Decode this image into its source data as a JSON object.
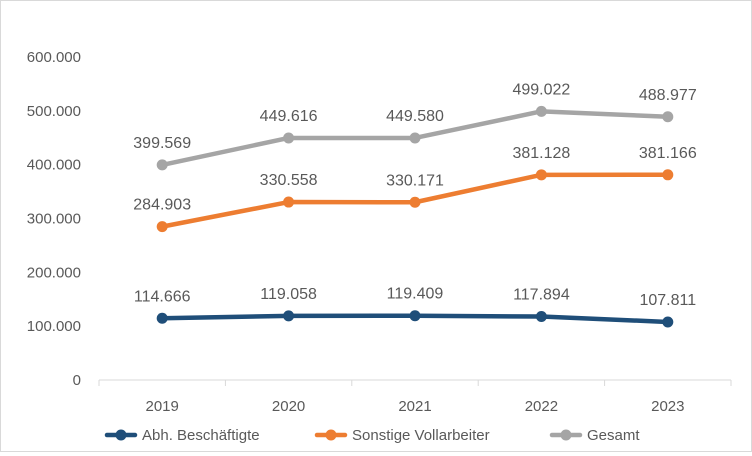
{
  "chart_data": {
    "type": "line",
    "title": "",
    "xlabel": "",
    "ylabel": "",
    "categories": [
      "2019",
      "2020",
      "2021",
      "2022",
      "2023"
    ],
    "ylim": [
      0,
      600000
    ],
    "yticks": [
      0,
      100000,
      200000,
      300000,
      400000,
      500000,
      600000
    ],
    "ytick_labels": [
      "0",
      "100.000",
      "200.000",
      "300.000",
      "400.000",
      "500.000",
      "600.000"
    ],
    "grid": false,
    "legend_position": "bottom",
    "series": [
      {
        "name": "Abh. Beschäftigte",
        "color": "#1f4e79",
        "values": [
          114666,
          119058,
          119409,
          117894,
          107811
        ],
        "labels": [
          "114.666",
          "119.058",
          "119.409",
          "117.894",
          "107.811"
        ]
      },
      {
        "name": "Sonstige Vollarbeiter",
        "color": "#ed7d31",
        "values": [
          284903,
          330558,
          330171,
          381128,
          381166
        ],
        "labels": [
          "284.903",
          "330.558",
          "330.171",
          "381.128",
          "381.166"
        ]
      },
      {
        "name": "Gesamt",
        "color": "#a5a5a5",
        "values": [
          399569,
          449616,
          449580,
          499022,
          488977
        ],
        "labels": [
          "399.569",
          "449.616",
          "449.580",
          "499.022",
          "488.977"
        ]
      }
    ]
  }
}
